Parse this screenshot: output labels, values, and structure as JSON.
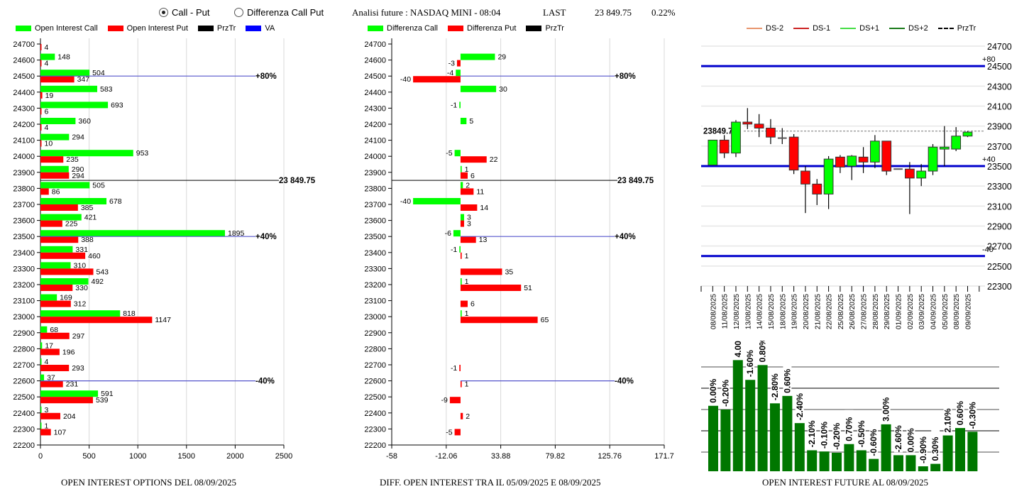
{
  "mode_selector": {
    "options": [
      {
        "label": "Call - Put",
        "selected": true
      },
      {
        "label": "Differenza Call Put",
        "selected": false
      }
    ]
  },
  "header": {
    "title": "Analisi future : NASDAQ MINI - 08:04",
    "last_label": "LAST",
    "last_value": "23 849.75",
    "change": "0.22%"
  },
  "colors": {
    "call": "#00ff00",
    "put": "#ff0000",
    "przTr": "#000000",
    "va": "#0000ff",
    "ds_minus2": "#e8956d",
    "ds_minus1": "#cc2222",
    "ds_plus1": "#44dd44",
    "ds_plus2": "#1a7a1a",
    "future_bar": "#007700"
  },
  "chart_data": [
    {
      "id": "oi-options",
      "type": "bar",
      "orientation": "horizontal",
      "title": "OPEN INTEREST OPTIONS DEL 08/09/2025",
      "legend": [
        "Open Interest Call",
        "Open Interest Put",
        "PrzTr",
        "VA"
      ],
      "categories": [
        24700,
        24600,
        24500,
        24400,
        24300,
        24200,
        24100,
        24000,
        23900,
        23800,
        23700,
        23600,
        23500,
        23400,
        23300,
        23200,
        23100,
        23000,
        22900,
        22800,
        22700,
        22600,
        22500,
        22400,
        22300,
        22200
      ],
      "series": [
        {
          "name": "Open Interest Call",
          "values": [
            null,
            148,
            504,
            583,
            693,
            360,
            294,
            953,
            290,
            505,
            678,
            421,
            1895,
            331,
            310,
            492,
            169,
            818,
            68,
            17,
            4,
            37,
            591,
            3,
            1,
            null
          ]
        },
        {
          "name": "Open Interest Put",
          "values": [
            4,
            4,
            347,
            19,
            6,
            4,
            10,
            235,
            294,
            86,
            385,
            225,
            388,
            460,
            543,
            330,
            312,
            1147,
            297,
            196,
            293,
            231,
            539,
            204,
            107,
            null
          ]
        }
      ],
      "xlim": [
        0,
        2500
      ],
      "xticks": [
        "0",
        "500",
        "1000",
        "1500",
        "2000",
        "2500"
      ],
      "reference_lines": [
        {
          "level": 24500,
          "label": "+80%",
          "type": "VA"
        },
        {
          "level": 23849.75,
          "label": "23 849.75",
          "type": "PrzTr"
        },
        {
          "level": 23500,
          "label": "+40%",
          "type": "VA"
        },
        {
          "level": 22600,
          "label": "-40%",
          "type": "VA"
        }
      ]
    },
    {
      "id": "diff-oi",
      "type": "bar",
      "orientation": "horizontal",
      "title": "DIFF. OPEN INTEREST TRA IL 05/09/2025 E 08/09/2025",
      "legend": [
        "Differenza Call",
        "Differenza Put",
        "PrzTr"
      ],
      "categories": [
        24700,
        24600,
        24500,
        24400,
        24300,
        24200,
        24100,
        24000,
        23900,
        23800,
        23700,
        23600,
        23500,
        23400,
        23300,
        23200,
        23100,
        23000,
        22900,
        22800,
        22700,
        22600,
        22500,
        22400,
        22300,
        22200
      ],
      "series": [
        {
          "name": "Differenza Call",
          "values": [
            null,
            29,
            -4,
            30,
            -1,
            5,
            null,
            -5,
            1,
            2,
            -40,
            3,
            -6,
            -1,
            null,
            1,
            null,
            1,
            null,
            null,
            null,
            null,
            null,
            null,
            null,
            null
          ]
        },
        {
          "name": "Differenza Put",
          "values": [
            null,
            -3,
            -40,
            null,
            null,
            null,
            null,
            22,
            6,
            11,
            14,
            3,
            13,
            1,
            35,
            51,
            6,
            65,
            null,
            null,
            -1,
            1,
            -9,
            2,
            -5,
            null
          ]
        }
      ],
      "xlim": [
        -58,
        171.7
      ],
      "xticks": [
        "-58",
        "-12.06",
        "33.88",
        "79.82",
        "125.76",
        "171.7"
      ],
      "reference_lines": [
        {
          "level": 24500,
          "label": "+80%",
          "type": "VA"
        },
        {
          "level": 23849.75,
          "label": "23 849.75",
          "type": "PrzTr"
        },
        {
          "level": 23500,
          "label": "+40%",
          "type": "VA"
        },
        {
          "level": 22600,
          "label": "-40%",
          "type": "VA"
        }
      ]
    },
    {
      "id": "candles",
      "type": "candlestick",
      "legend": [
        "DS-2",
        "DS-1",
        "DS+1",
        "DS+2",
        "PrzTr"
      ],
      "ylim": [
        22300,
        24700
      ],
      "yticks": [
        "24700",
        "24500",
        "24300",
        "24100",
        "23900",
        "23700",
        "23500",
        "23300",
        "23100",
        "22900",
        "22700",
        "22500",
        "22300"
      ],
      "dates": [
        "08/08/2025",
        "11/08/2025",
        "12/08/2025",
        "13/08/2025",
        "14/08/2025",
        "15/08/2025",
        "18/08/2025",
        "19/08/2025",
        "20/08/2025",
        "21/08/2025",
        "22/08/2025",
        "25/08/2025",
        "26/08/2025",
        "27/08/2025",
        "28/08/2025",
        "29/08/2025",
        "01/09/2025",
        "02/09/2025",
        "03/09/2025",
        "04/09/2025",
        "05/09/2025",
        "08/09/2025",
        "09/09/2025"
      ],
      "ohlc": [
        [
          23510,
          23760,
          23510,
          23760
        ],
        [
          23760,
          23810,
          23580,
          23630
        ],
        [
          23630,
          23960,
          23590,
          23940
        ],
        [
          23940,
          24080,
          23870,
          23920
        ],
        [
          23920,
          24020,
          23790,
          23880
        ],
        [
          23880,
          23970,
          23720,
          23790
        ],
        [
          23780,
          23880,
          23720,
          23780
        ],
        [
          23790,
          23820,
          23420,
          23460
        ],
        [
          23450,
          23500,
          23030,
          23320
        ],
        [
          23320,
          23370,
          23110,
          23220
        ],
        [
          23220,
          23600,
          23070,
          23570
        ],
        [
          23590,
          23610,
          23430,
          23490
        ],
        [
          23500,
          23610,
          23360,
          23600
        ],
        [
          23590,
          23690,
          23430,
          23540
        ],
        [
          23540,
          23810,
          23480,
          23750
        ],
        [
          23750,
          23750,
          23410,
          23450
        ],
        [
          23470,
          23470,
          23470,
          23470
        ],
        [
          23470,
          23540,
          23020,
          23380
        ],
        [
          23380,
          23520,
          23300,
          23450
        ],
        [
          23450,
          23720,
          23410,
          23690
        ],
        [
          23670,
          23900,
          23500,
          23690
        ],
        [
          23670,
          23890,
          23650,
          23800
        ],
        [
          23800,
          23850,
          23790,
          23840
        ]
      ],
      "przTr": 23849.75,
      "przTr_label": "23849.75",
      "levels": [
        {
          "level": 24500,
          "label": "+80"
        },
        {
          "level": 23500,
          "label": "+40"
        },
        {
          "level": 22600,
          "label": "-40"
        }
      ]
    },
    {
      "id": "oi-future",
      "type": "bar",
      "title": "OPEN INTEREST FUTURE AL 08/09/2025",
      "categories": [
        "08/08/2025",
        "11/08/2025",
        "12/08/2025",
        "13/08/2025",
        "14/08/2025",
        "15/08/2025",
        "18/08/2025",
        "19/08/2025",
        "20/08/2025",
        "21/08/2025",
        "22/08/2025",
        "25/08/2025",
        "26/08/2025",
        "27/08/2025",
        "28/08/2025",
        "29/08/2025",
        "01/09/2025",
        "02/09/2025",
        "03/09/2025",
        "04/09/2025",
        "05/09/2025",
        "08/09/2025"
      ],
      "values": [
        0.53,
        0.5,
        0.9,
        0.74,
        0.86,
        0.55,
        0.61,
        0.39,
        0.17,
        0.16,
        0.15,
        0.22,
        0.17,
        0.1,
        0.38,
        0.13,
        0.13,
        0.04,
        0.06,
        0.29,
        0.35,
        0.32
      ],
      "value_unit": "relative open interest (no axis labels shown)",
      "labels": [
        "0.00%",
        "-0.20%",
        "4.00%",
        "-1.60%",
        "0.80%",
        "-2.80%",
        "0.60%",
        "-2.40%",
        "-2.10%",
        "-0.10%",
        "-0.20%",
        "0.70%",
        "-0.50%",
        "-0.60%",
        "3.00%",
        "-2.60%",
        "0.00%",
        "-0.90%",
        "0.30%",
        "2.10%",
        "0.60%",
        "-0.30%"
      ]
    }
  ]
}
